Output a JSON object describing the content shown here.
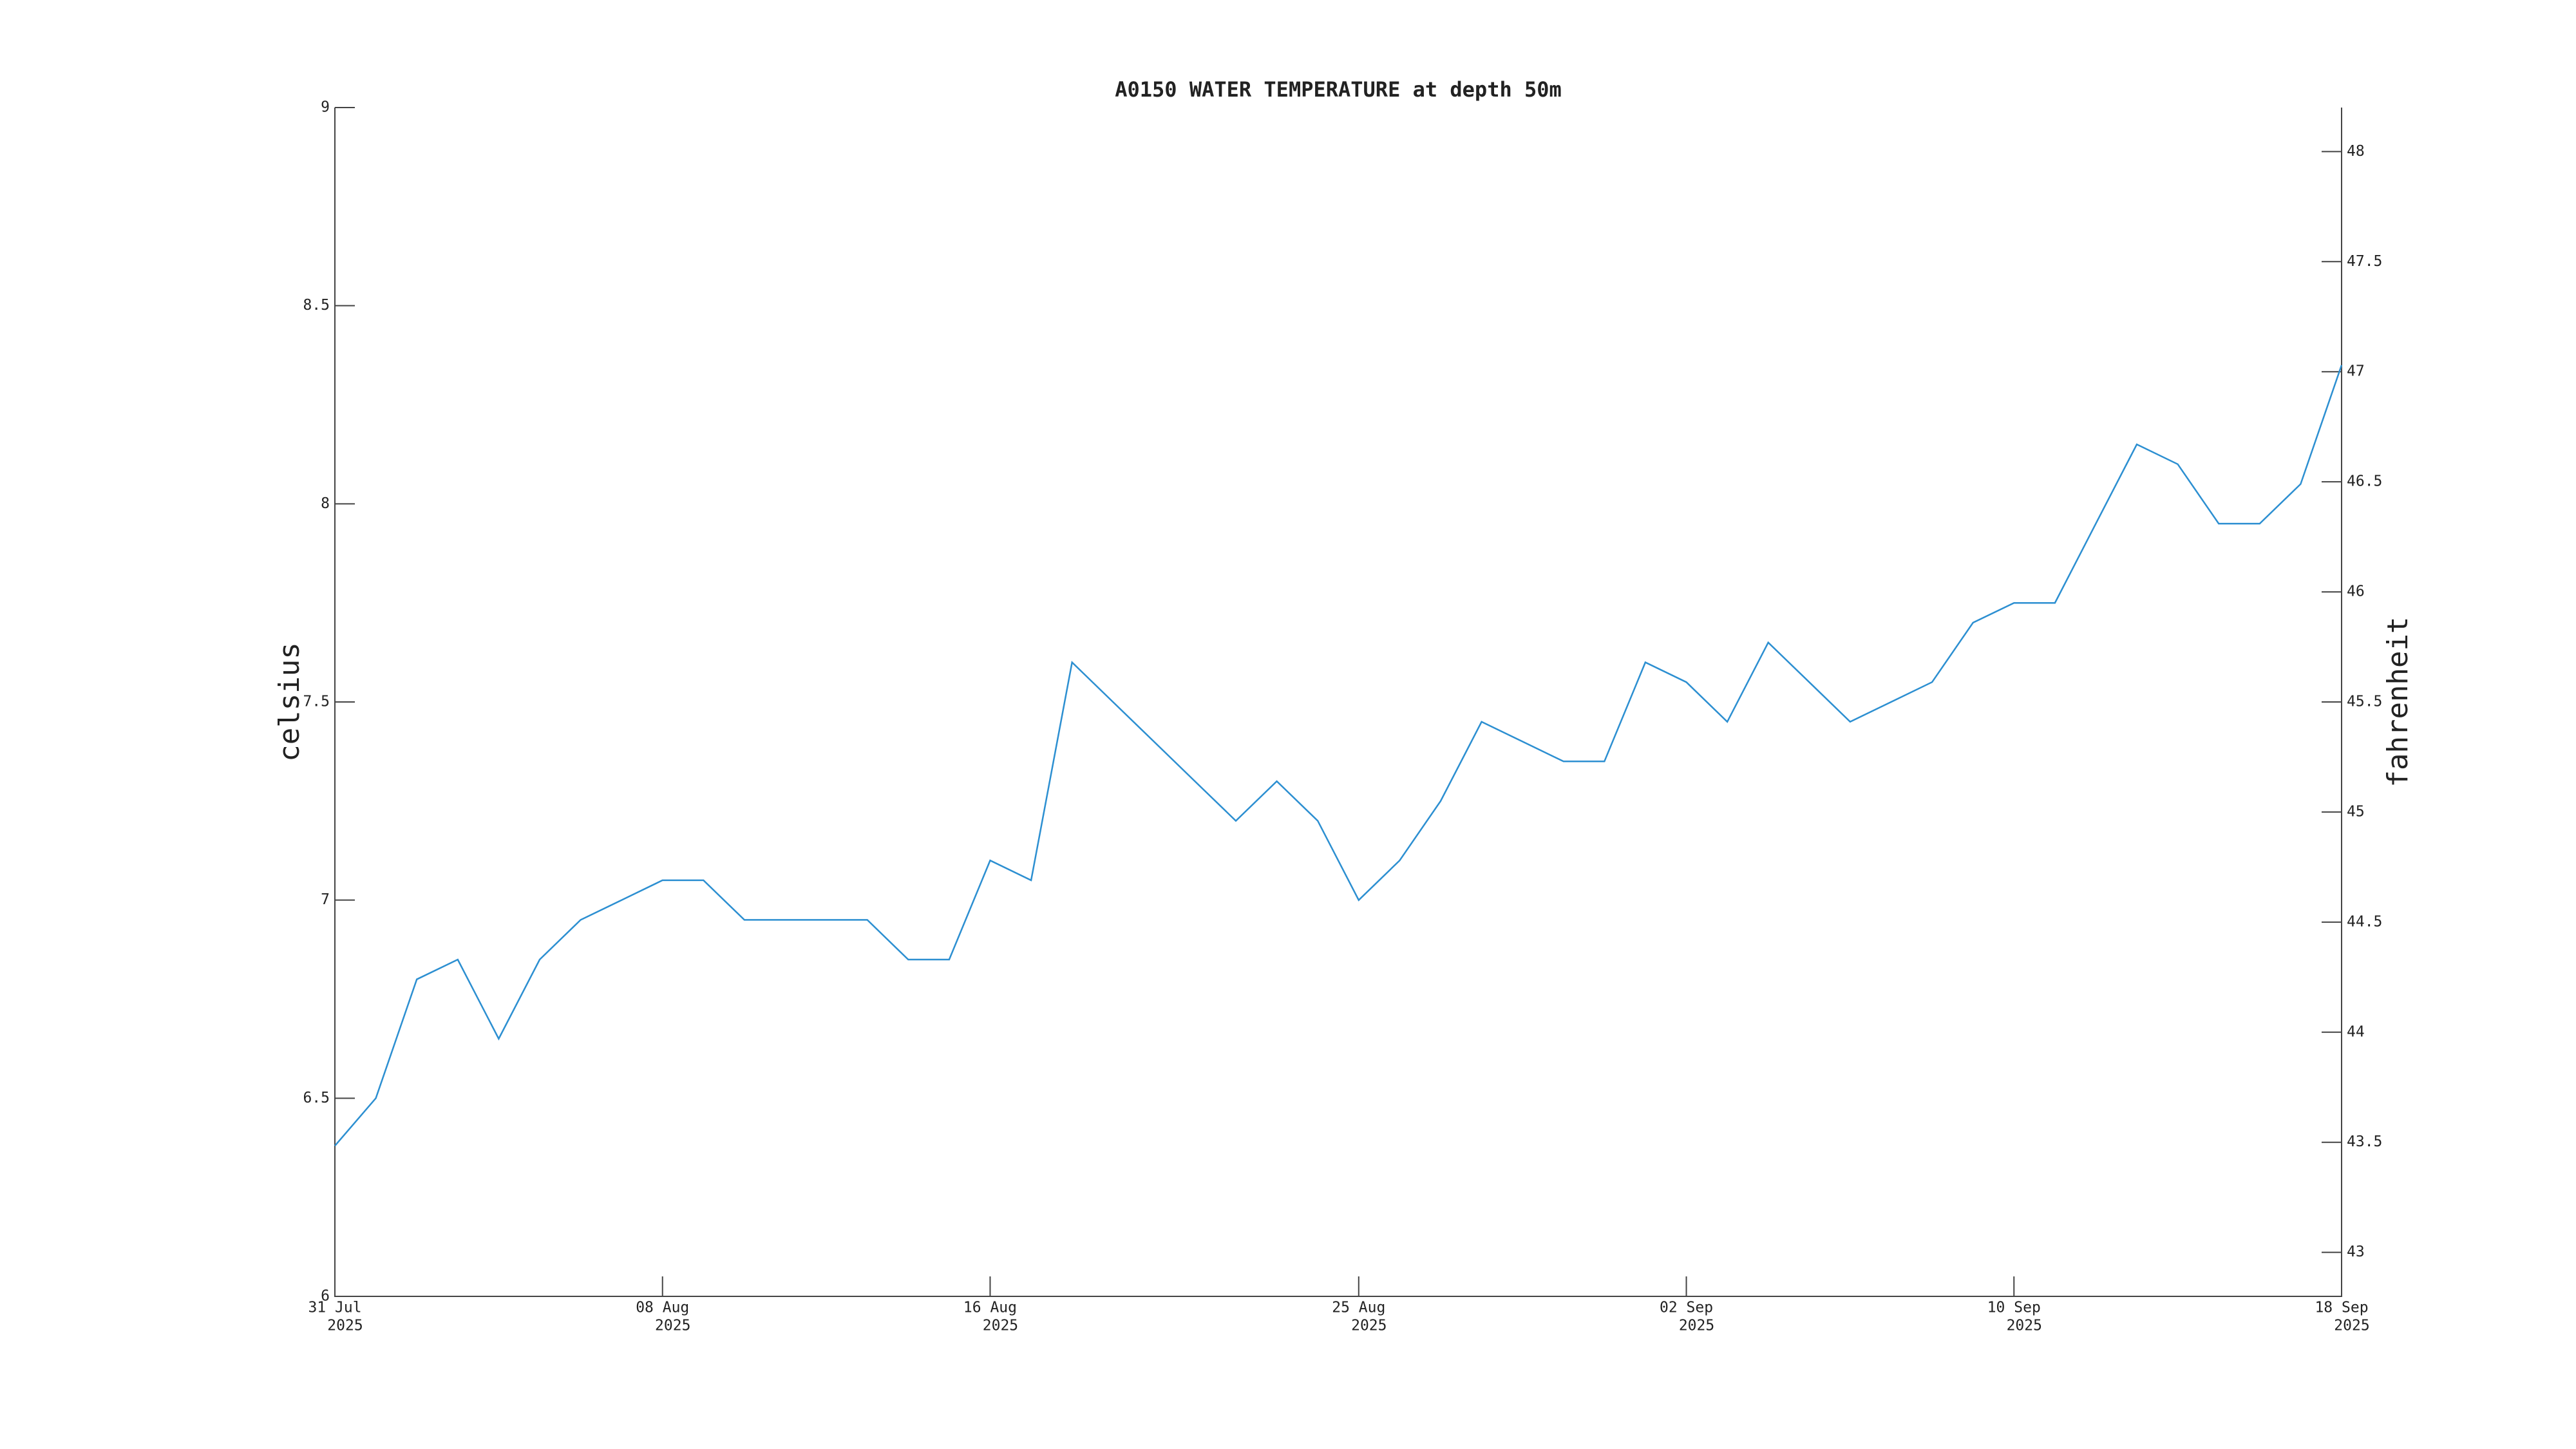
{
  "chart_data": {
    "type": "line",
    "title": "A0150 WATER TEMPERATURE at depth 50m",
    "ylabel": "celsius",
    "y2label": "fahrenheit",
    "color": "#2c8fd1",
    "x": [
      "2025-07-31",
      "2025-08-01",
      "2025-08-02",
      "2025-08-03",
      "2025-08-04",
      "2025-08-05",
      "2025-08-06",
      "2025-08-07",
      "2025-08-08",
      "2025-08-09",
      "2025-08-10",
      "2025-08-11",
      "2025-08-12",
      "2025-08-13",
      "2025-08-14",
      "2025-08-15",
      "2025-08-16",
      "2025-08-17",
      "2025-08-18",
      "2025-08-19",
      "2025-08-20",
      "2025-08-21",
      "2025-08-22",
      "2025-08-23",
      "2025-08-24",
      "2025-08-25",
      "2025-08-26",
      "2025-08-27",
      "2025-08-28",
      "2025-08-29",
      "2025-08-30",
      "2025-08-31",
      "2025-09-01",
      "2025-09-02",
      "2025-09-03",
      "2025-09-04",
      "2025-09-05",
      "2025-09-06",
      "2025-09-07",
      "2025-09-08",
      "2025-09-09",
      "2025-09-10",
      "2025-09-11",
      "2025-09-12",
      "2025-09-13",
      "2025-09-14",
      "2025-09-15",
      "2025-09-16",
      "2025-09-17",
      "2025-09-18"
    ],
    "values": [
      6.38,
      6.5,
      6.8,
      6.85,
      6.65,
      6.85,
      6.95,
      7.0,
      7.05,
      7.05,
      6.95,
      6.95,
      6.95,
      6.95,
      6.85,
      6.85,
      7.1,
      7.05,
      7.6,
      7.5,
      7.4,
      7.3,
      7.2,
      7.3,
      7.2,
      7.0,
      7.1,
      7.25,
      7.45,
      7.4,
      7.35,
      7.35,
      7.6,
      7.55,
      7.45,
      7.65,
      7.55,
      7.45,
      7.5,
      7.55,
      7.7,
      7.75,
      7.75,
      7.95,
      8.15,
      8.1,
      7.95,
      7.95,
      8.05,
      8.35
    ],
    "xlim": [
      "2025-07-31",
      "2025-09-18"
    ],
    "xticks": [
      {
        "value": "2025-07-31",
        "label": [
          "31 Jul",
          "2025"
        ]
      },
      {
        "value": "2025-08-08",
        "label": [
          "08 Aug",
          "2025"
        ]
      },
      {
        "value": "2025-08-16",
        "label": [
          "16 Aug",
          "2025"
        ]
      },
      {
        "value": "2025-08-25",
        "label": [
          "25 Aug",
          "2025"
        ]
      },
      {
        "value": "2025-09-02",
        "label": [
          "02 Sep",
          "2025"
        ]
      },
      {
        "value": "2025-09-10",
        "label": [
          "10 Sep",
          "2025"
        ]
      },
      {
        "value": "2025-09-18",
        "label": [
          "18 Sep",
          "2025"
        ]
      }
    ],
    "ylim": [
      6,
      9
    ],
    "yticks": [
      6,
      6.5,
      7,
      7.5,
      8,
      8.5,
      9
    ],
    "y2lim": [
      42.8,
      48.2
    ],
    "y2ticks": [
      43,
      43.5,
      44,
      44.5,
      45,
      45.5,
      46,
      46.5,
      47,
      47.5,
      48
    ]
  }
}
